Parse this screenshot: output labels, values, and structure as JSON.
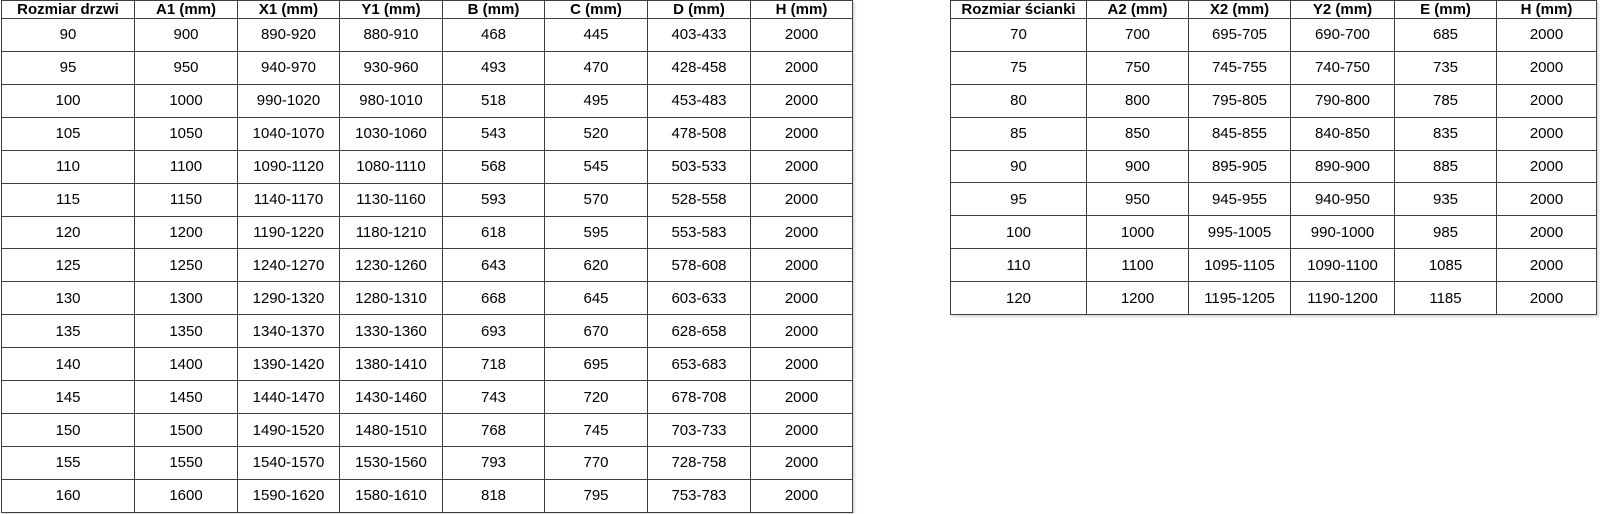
{
  "colors": {
    "border": "#3f3f3f",
    "text": "#000000",
    "background": "#ffffff"
  },
  "tables": [
    {
      "id": "door-size-table",
      "headers": [
        "Rozmiar drzwi",
        "A1 (mm)",
        "X1 (mm)",
        "Y1 (mm)",
        "B (mm)",
        "C (mm)",
        "D (mm)",
        "H (mm)"
      ],
      "rows": [
        [
          "90",
          "900",
          "890-920",
          "880-910",
          "468",
          "445",
          "403-433",
          "2000"
        ],
        [
          "95",
          "950",
          "940-970",
          "930-960",
          "493",
          "470",
          "428-458",
          "2000"
        ],
        [
          "100",
          "1000",
          "990-1020",
          "980-1010",
          "518",
          "495",
          "453-483",
          "2000"
        ],
        [
          "105",
          "1050",
          "1040-1070",
          "1030-1060",
          "543",
          "520",
          "478-508",
          "2000"
        ],
        [
          "110",
          "1100",
          "1090-1120",
          "1080-1110",
          "568",
          "545",
          "503-533",
          "2000"
        ],
        [
          "115",
          "1150",
          "1140-1170",
          "1130-1160",
          "593",
          "570",
          "528-558",
          "2000"
        ],
        [
          "120",
          "1200",
          "1190-1220",
          "1180-1210",
          "618",
          "595",
          "553-583",
          "2000"
        ],
        [
          "125",
          "1250",
          "1240-1270",
          "1230-1260",
          "643",
          "620",
          "578-608",
          "2000"
        ],
        [
          "130",
          "1300",
          "1290-1320",
          "1280-1310",
          "668",
          "645",
          "603-633",
          "2000"
        ],
        [
          "135",
          "1350",
          "1340-1370",
          "1330-1360",
          "693",
          "670",
          "628-658",
          "2000"
        ],
        [
          "140",
          "1400",
          "1390-1420",
          "1380-1410",
          "718",
          "695",
          "653-683",
          "2000"
        ],
        [
          "145",
          "1450",
          "1440-1470",
          "1430-1460",
          "743",
          "720",
          "678-708",
          "2000"
        ],
        [
          "150",
          "1500",
          "1490-1520",
          "1480-1510",
          "768",
          "745",
          "703-733",
          "2000"
        ],
        [
          "155",
          "1550",
          "1540-1570",
          "1530-1560",
          "793",
          "770",
          "728-758",
          "2000"
        ],
        [
          "160",
          "1600",
          "1590-1620",
          "1580-1610",
          "818",
          "795",
          "753-783",
          "2000"
        ]
      ]
    },
    {
      "id": "wall-size-table",
      "headers": [
        "Rozmiar ścianki",
        "A2 (mm)",
        "X2 (mm)",
        "Y2 (mm)",
        "E (mm)",
        "H (mm)"
      ],
      "rows": [
        [
          "70",
          "700",
          "695-705",
          "690-700",
          "685",
          "2000"
        ],
        [
          "75",
          "750",
          "745-755",
          "740-750",
          "735",
          "2000"
        ],
        [
          "80",
          "800",
          "795-805",
          "790-800",
          "785",
          "2000"
        ],
        [
          "85",
          "850",
          "845-855",
          "840-850",
          "835",
          "2000"
        ],
        [
          "90",
          "900",
          "895-905",
          "890-900",
          "885",
          "2000"
        ],
        [
          "95",
          "950",
          "945-955",
          "940-950",
          "935",
          "2000"
        ],
        [
          "100",
          "1000",
          "995-1005",
          "990-1000",
          "985",
          "2000"
        ],
        [
          "110",
          "1100",
          "1095-1105",
          "1090-1100",
          "1085",
          "2000"
        ],
        [
          "120",
          "1200",
          "1195-1205",
          "1190-1200",
          "1185",
          "2000"
        ]
      ]
    }
  ]
}
